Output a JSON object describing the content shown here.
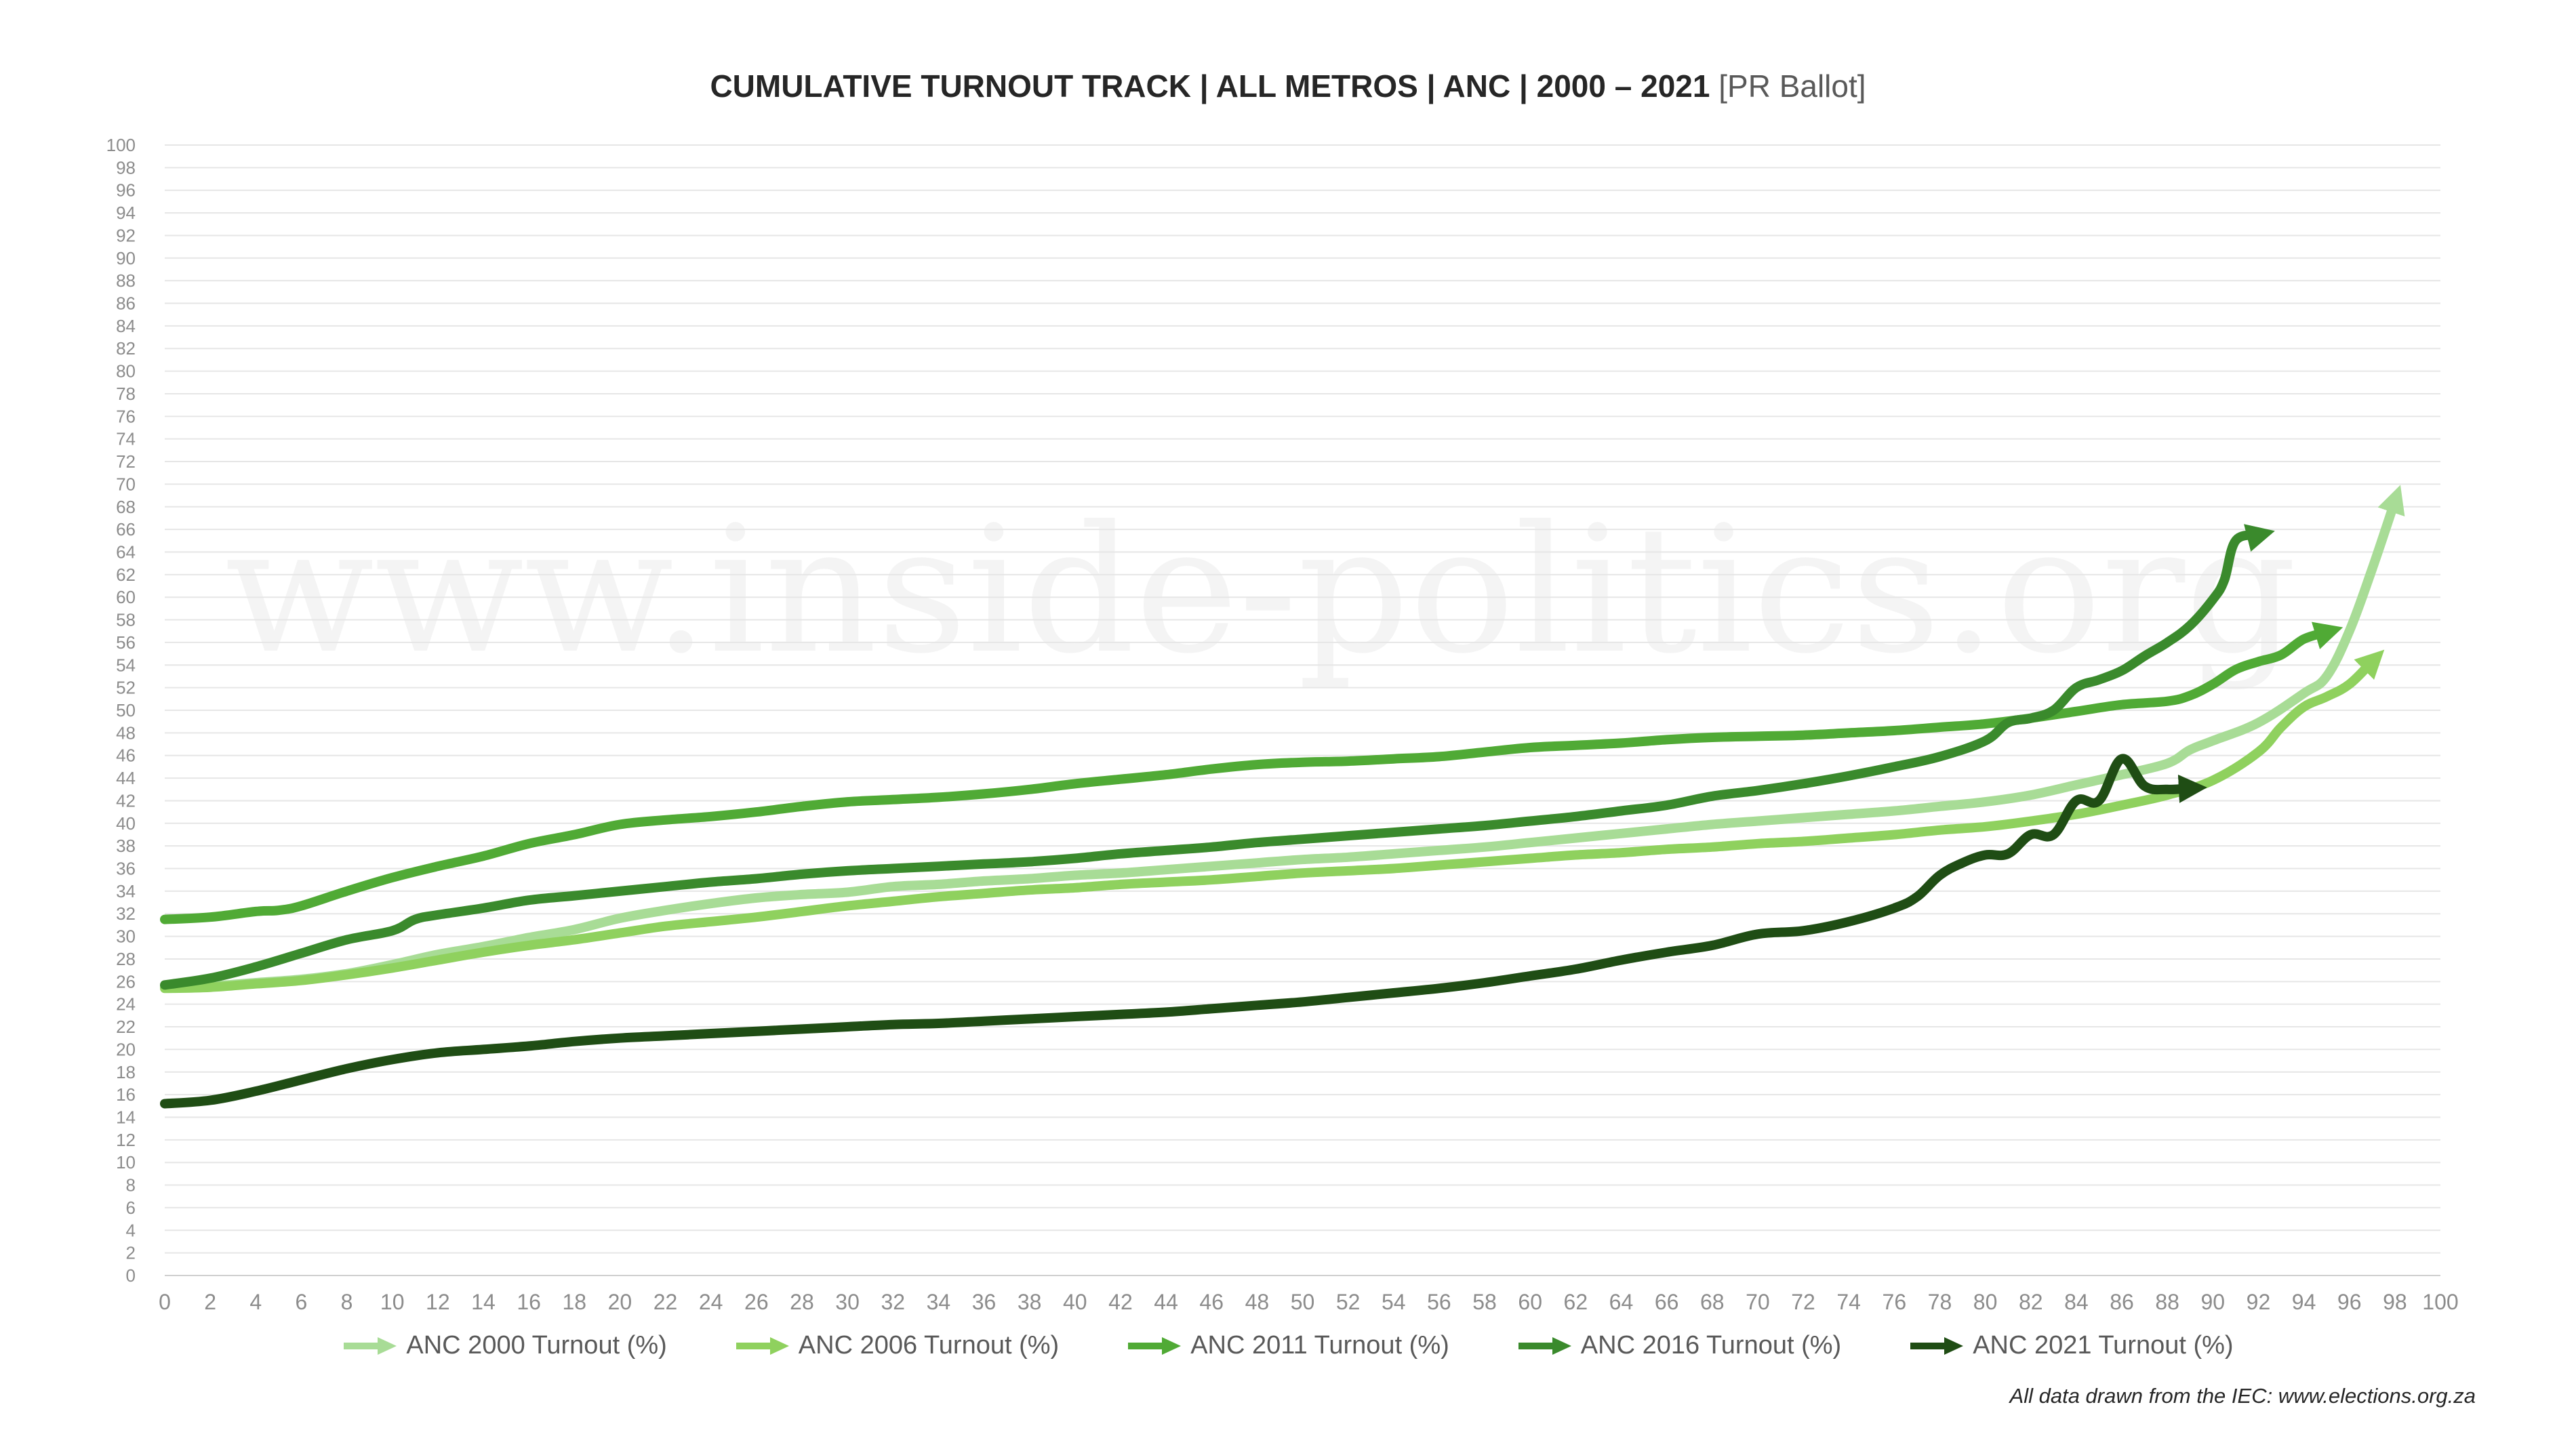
{
  "watermark": "www.inside-politics.org",
  "source_note": "All data drawn from the IEC: www.elections.org.za",
  "chart_data": {
    "type": "line",
    "title": "CUMULATIVE TURNOUT TRACK | ALL METROS | ANC | 2000 – 2021",
    "title_suffix": "[PR Ballot]",
    "xlabel": "",
    "ylabel": "",
    "xlim": [
      0,
      100
    ],
    "ylim": [
      0,
      100
    ],
    "x_ticks": [
      0,
      2,
      4,
      6,
      8,
      10,
      12,
      14,
      16,
      18,
      20,
      22,
      24,
      26,
      28,
      30,
      32,
      34,
      36,
      38,
      40,
      42,
      44,
      46,
      48,
      50,
      52,
      54,
      56,
      58,
      60,
      62,
      64,
      66,
      68,
      70,
      72,
      74,
      76,
      78,
      80,
      82,
      84,
      86,
      88,
      90,
      92,
      94,
      96,
      98,
      100
    ],
    "y_ticks": [
      0,
      2,
      4,
      6,
      8,
      10,
      12,
      14,
      16,
      18,
      20,
      22,
      24,
      26,
      28,
      30,
      32,
      34,
      36,
      38,
      40,
      42,
      44,
      46,
      48,
      50,
      52,
      54,
      56,
      58,
      60,
      62,
      64,
      66,
      68,
      70,
      72,
      74,
      76,
      78,
      80,
      82,
      84,
      86,
      88,
      90,
      92,
      94,
      96,
      98,
      100
    ],
    "grid": "horizontal",
    "legend_position": "bottom",
    "series": [
      {
        "name": "ANC 2000 Turnout (%)",
        "color": "#a8dc96",
        "points": [
          [
            0,
            25.5
          ],
          [
            2,
            25.6
          ],
          [
            4,
            25.9
          ],
          [
            6,
            26.2
          ],
          [
            8,
            26.7
          ],
          [
            10,
            27.5
          ],
          [
            12,
            28.4
          ],
          [
            14,
            29.1
          ],
          [
            16,
            29.9
          ],
          [
            18,
            30.6
          ],
          [
            20,
            31.6
          ],
          [
            22,
            32.3
          ],
          [
            24,
            32.9
          ],
          [
            26,
            33.4
          ],
          [
            28,
            33.7
          ],
          [
            30,
            33.9
          ],
          [
            32,
            34.4
          ],
          [
            34,
            34.6
          ],
          [
            36,
            34.9
          ],
          [
            38,
            35.1
          ],
          [
            40,
            35.4
          ],
          [
            42,
            35.6
          ],
          [
            44,
            35.9
          ],
          [
            46,
            36.2
          ],
          [
            48,
            36.5
          ],
          [
            50,
            36.8
          ],
          [
            52,
            37.0
          ],
          [
            54,
            37.3
          ],
          [
            56,
            37.6
          ],
          [
            58,
            37.9
          ],
          [
            60,
            38.3
          ],
          [
            62,
            38.7
          ],
          [
            64,
            39.1
          ],
          [
            66,
            39.5
          ],
          [
            68,
            39.9
          ],
          [
            70,
            40.2
          ],
          [
            72,
            40.5
          ],
          [
            74,
            40.8
          ],
          [
            76,
            41.1
          ],
          [
            78,
            41.5
          ],
          [
            80,
            41.9
          ],
          [
            82,
            42.5
          ],
          [
            84,
            43.4
          ],
          [
            86,
            44.3
          ],
          [
            88,
            45.3
          ],
          [
            89,
            46.5
          ],
          [
            90,
            47.3
          ],
          [
            92,
            48.9
          ],
          [
            94,
            51.5
          ],
          [
            95,
            53.0
          ],
          [
            96,
            57.0
          ],
          [
            97,
            62.5
          ],
          [
            98,
            68.5
          ]
        ]
      },
      {
        "name": "ANC 2006 Turnout (%)",
        "color": "#8fd15e",
        "points": [
          [
            0,
            25.4
          ],
          [
            2,
            25.5
          ],
          [
            4,
            25.8
          ],
          [
            6,
            26.1
          ],
          [
            8,
            26.6
          ],
          [
            10,
            27.2
          ],
          [
            12,
            27.9
          ],
          [
            14,
            28.6
          ],
          [
            16,
            29.2
          ],
          [
            18,
            29.7
          ],
          [
            20,
            30.3
          ],
          [
            22,
            30.9
          ],
          [
            24,
            31.3
          ],
          [
            26,
            31.7
          ],
          [
            28,
            32.2
          ],
          [
            30,
            32.7
          ],
          [
            32,
            33.1
          ],
          [
            34,
            33.5
          ],
          [
            36,
            33.8
          ],
          [
            38,
            34.1
          ],
          [
            40,
            34.3
          ],
          [
            42,
            34.6
          ],
          [
            44,
            34.8
          ],
          [
            46,
            35.0
          ],
          [
            48,
            35.3
          ],
          [
            50,
            35.6
          ],
          [
            52,
            35.8
          ],
          [
            54,
            36.0
          ],
          [
            56,
            36.3
          ],
          [
            58,
            36.6
          ],
          [
            60,
            36.9
          ],
          [
            62,
            37.2
          ],
          [
            64,
            37.4
          ],
          [
            66,
            37.7
          ],
          [
            68,
            37.9
          ],
          [
            70,
            38.2
          ],
          [
            72,
            38.4
          ],
          [
            74,
            38.7
          ],
          [
            76,
            39.0
          ],
          [
            78,
            39.4
          ],
          [
            80,
            39.7
          ],
          [
            82,
            40.2
          ],
          [
            84,
            40.8
          ],
          [
            86,
            41.6
          ],
          [
            88,
            42.5
          ],
          [
            90,
            43.8
          ],
          [
            92,
            46.3
          ],
          [
            93,
            48.5
          ],
          [
            94,
            50.3
          ],
          [
            95,
            51.2
          ],
          [
            96,
            52.3
          ],
          [
            97,
            54.3
          ]
        ]
      },
      {
        "name": "ANC 2011 Turnout (%)",
        "color": "#50aa35",
        "points": [
          [
            0,
            31.5
          ],
          [
            2,
            31.7
          ],
          [
            4,
            32.2
          ],
          [
            5,
            32.3
          ],
          [
            6,
            32.7
          ],
          [
            8,
            34.0
          ],
          [
            10,
            35.2
          ],
          [
            12,
            36.2
          ],
          [
            14,
            37.1
          ],
          [
            16,
            38.2
          ],
          [
            18,
            39.0
          ],
          [
            20,
            39.9
          ],
          [
            22,
            40.3
          ],
          [
            24,
            40.6
          ],
          [
            26,
            41.0
          ],
          [
            28,
            41.5
          ],
          [
            30,
            41.9
          ],
          [
            32,
            42.1
          ],
          [
            34,
            42.3
          ],
          [
            36,
            42.6
          ],
          [
            38,
            43.0
          ],
          [
            40,
            43.5
          ],
          [
            42,
            43.9
          ],
          [
            44,
            44.3
          ],
          [
            46,
            44.8
          ],
          [
            48,
            45.2
          ],
          [
            50,
            45.4
          ],
          [
            52,
            45.5
          ],
          [
            54,
            45.7
          ],
          [
            56,
            45.9
          ],
          [
            58,
            46.3
          ],
          [
            60,
            46.7
          ],
          [
            62,
            46.9
          ],
          [
            64,
            47.1
          ],
          [
            66,
            47.4
          ],
          [
            68,
            47.6
          ],
          [
            70,
            47.7
          ],
          [
            72,
            47.8
          ],
          [
            74,
            48.0
          ],
          [
            76,
            48.2
          ],
          [
            78,
            48.5
          ],
          [
            80,
            48.8
          ],
          [
            82,
            49.3
          ],
          [
            84,
            49.9
          ],
          [
            86,
            50.5
          ],
          [
            88,
            50.8
          ],
          [
            89,
            51.3
          ],
          [
            90,
            52.3
          ],
          [
            91,
            53.6
          ],
          [
            92,
            54.3
          ],
          [
            93,
            54.9
          ],
          [
            94,
            56.3
          ],
          [
            95,
            56.9
          ]
        ]
      },
      {
        "name": "ANC 2016 Turnout (%)",
        "color": "#3a8a2c",
        "points": [
          [
            0,
            25.7
          ],
          [
            2,
            26.3
          ],
          [
            4,
            27.3
          ],
          [
            6,
            28.5
          ],
          [
            8,
            29.7
          ],
          [
            10,
            30.5
          ],
          [
            11,
            31.5
          ],
          [
            12,
            31.9
          ],
          [
            14,
            32.5
          ],
          [
            16,
            33.2
          ],
          [
            18,
            33.6
          ],
          [
            20,
            34.0
          ],
          [
            22,
            34.4
          ],
          [
            24,
            34.8
          ],
          [
            26,
            35.1
          ],
          [
            28,
            35.5
          ],
          [
            30,
            35.8
          ],
          [
            32,
            36.0
          ],
          [
            34,
            36.2
          ],
          [
            36,
            36.4
          ],
          [
            38,
            36.6
          ],
          [
            40,
            36.9
          ],
          [
            42,
            37.3
          ],
          [
            44,
            37.6
          ],
          [
            46,
            37.9
          ],
          [
            48,
            38.3
          ],
          [
            50,
            38.6
          ],
          [
            52,
            38.9
          ],
          [
            54,
            39.2
          ],
          [
            56,
            39.5
          ],
          [
            58,
            39.8
          ],
          [
            60,
            40.2
          ],
          [
            62,
            40.6
          ],
          [
            64,
            41.1
          ],
          [
            66,
            41.6
          ],
          [
            68,
            42.4
          ],
          [
            70,
            42.9
          ],
          [
            72,
            43.5
          ],
          [
            74,
            44.2
          ],
          [
            76,
            45.0
          ],
          [
            78,
            45.9
          ],
          [
            80,
            47.3
          ],
          [
            81,
            48.9
          ],
          [
            82,
            49.3
          ],
          [
            83,
            50.0
          ],
          [
            84,
            52.0
          ],
          [
            85,
            52.7
          ],
          [
            86,
            53.5
          ],
          [
            87,
            54.8
          ],
          [
            88,
            56.0
          ],
          [
            89,
            57.5
          ],
          [
            90,
            59.8
          ],
          [
            90.5,
            61.5
          ],
          [
            91,
            65.0
          ],
          [
            92,
            65.5
          ]
        ]
      },
      {
        "name": "ANC 2021 Turnout (%)",
        "color": "#1f4d14",
        "points": [
          [
            0,
            15.2
          ],
          [
            2,
            15.5
          ],
          [
            4,
            16.3
          ],
          [
            6,
            17.3
          ],
          [
            8,
            18.3
          ],
          [
            10,
            19.1
          ],
          [
            12,
            19.7
          ],
          [
            14,
            20.0
          ],
          [
            16,
            20.3
          ],
          [
            18,
            20.7
          ],
          [
            20,
            21.0
          ],
          [
            22,
            21.2
          ],
          [
            24,
            21.4
          ],
          [
            26,
            21.6
          ],
          [
            28,
            21.8
          ],
          [
            30,
            22.0
          ],
          [
            32,
            22.2
          ],
          [
            34,
            22.3
          ],
          [
            36,
            22.5
          ],
          [
            38,
            22.7
          ],
          [
            40,
            22.9
          ],
          [
            42,
            23.1
          ],
          [
            44,
            23.3
          ],
          [
            46,
            23.6
          ],
          [
            48,
            23.9
          ],
          [
            50,
            24.2
          ],
          [
            52,
            24.6
          ],
          [
            54,
            25.0
          ],
          [
            56,
            25.4
          ],
          [
            58,
            25.9
          ],
          [
            60,
            26.5
          ],
          [
            62,
            27.1
          ],
          [
            64,
            27.9
          ],
          [
            66,
            28.6
          ],
          [
            68,
            29.2
          ],
          [
            70,
            30.2
          ],
          [
            72,
            30.5
          ],
          [
            74,
            31.3
          ],
          [
            76,
            32.5
          ],
          [
            77,
            33.5
          ],
          [
            78,
            35.4
          ],
          [
            79,
            36.5
          ],
          [
            80,
            37.2
          ],
          [
            81,
            37.3
          ],
          [
            82,
            39.0
          ],
          [
            83,
            39.0
          ],
          [
            84,
            42.0
          ],
          [
            85,
            42.0
          ],
          [
            86,
            45.7
          ],
          [
            87,
            43.3
          ],
          [
            88,
            43.0
          ],
          [
            89,
            43.1
          ]
        ]
      }
    ]
  }
}
